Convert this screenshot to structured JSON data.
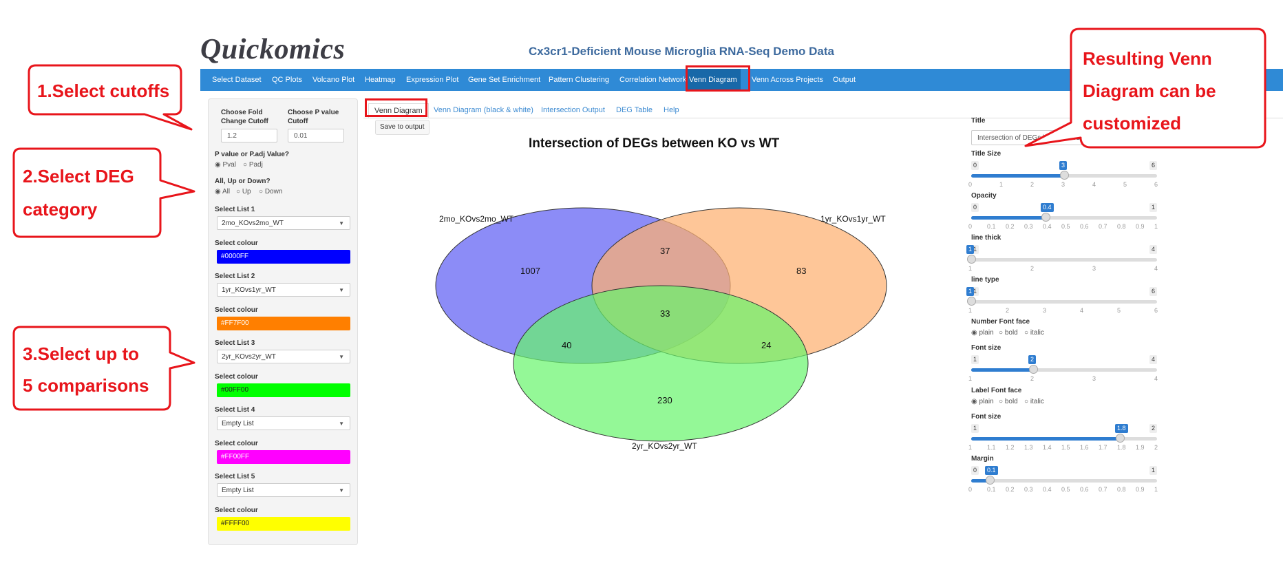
{
  "app": {
    "logo": "Quickomics",
    "title": "Cx3cr1-Deficient Mouse Microglia RNA-Seq Demo Data"
  },
  "nav": {
    "items": [
      "Select Dataset",
      "QC Plots",
      "Volcano Plot",
      "Heatmap",
      "Expression Plot",
      "Gene Set Enrichment",
      "Pattern Clustering",
      "Correlation Network",
      "Venn Diagram",
      "Venn Across Projects",
      "Output"
    ],
    "active": "Venn Diagram"
  },
  "sidebar": {
    "fold_change_label": "Choose Fold Change Cutoff",
    "fold_change_value": "1.2",
    "pvalue_label": "Choose P value Cutoff",
    "pvalue_value": "0.01",
    "pval_type_label": "P value or P.adj Value?",
    "pval_type_options": [
      "Pval",
      "Padj"
    ],
    "pval_type_selected": "Pval",
    "direction_label": "All, Up or Down?",
    "direction_options": [
      "All",
      "Up",
      "Down"
    ],
    "direction_selected": "All",
    "lists": [
      {
        "label": "Select List 1",
        "value": "2mo_KOvs2mo_WT",
        "colour_label": "Select colour",
        "colour": "#0000FF"
      },
      {
        "label": "Select List 2",
        "value": "1yr_KOvs1yr_WT",
        "colour_label": "Select colour",
        "colour": "#FF7F00"
      },
      {
        "label": "Select List 3",
        "value": "2yr_KOvs2yr_WT",
        "colour_label": "Select colour",
        "colour": "#00FF00"
      },
      {
        "label": "Select List 4",
        "value": "Empty List",
        "colour_label": "Select colour",
        "colour": "#FF00FF"
      },
      {
        "label": "Select List 5",
        "value": "Empty List",
        "colour_label": "Select colour",
        "colour": "#FFFF00"
      }
    ]
  },
  "tabs": {
    "items": [
      "Venn Diagram",
      "Venn Diagram (black & white)",
      "Intersection Output",
      "DEG Table",
      "Help"
    ],
    "active": "Venn Diagram",
    "save_button": "Save to output"
  },
  "venn": {
    "title": "Intersection of DEGs between KO vs WT",
    "sets": [
      {
        "name": "2mo_KOvs2mo_WT",
        "fill": "#6b6bf5"
      },
      {
        "name": "1yr_KOvs1yr_WT",
        "fill": "#fdb070"
      },
      {
        "name": "2yr_KOvs2yr_WT",
        "fill": "#66f56b"
      }
    ],
    "regions": {
      "only_2mo": "1007",
      "only_1yr": "83",
      "only_2yr": "230",
      "2mo_1yr": "37",
      "2mo_2yr": "40",
      "1yr_2yr": "24",
      "all": "33"
    }
  },
  "settings": {
    "title_label": "Title",
    "title_value": "Intersection of DEGs between KO vs WT",
    "sliders": [
      {
        "label": "Title Size",
        "min": 0,
        "max": 6,
        "value": 3,
        "ticks": [
          "0",
          "1",
          "2",
          "3",
          "4",
          "5",
          "6"
        ]
      },
      {
        "label": "Opacity",
        "min": 0,
        "max": 1,
        "value": 0.4,
        "ticks": [
          "0",
          "0.1",
          "0.2",
          "0.3",
          "0.4",
          "0.5",
          "0.6",
          "0.7",
          "0.8",
          "0.9",
          "1"
        ]
      },
      {
        "label": "line thick",
        "min": 1,
        "max": 4,
        "value": 1,
        "ticks": [
          "1",
          "2",
          "3",
          "4"
        ]
      },
      {
        "label": "line type",
        "min": 1,
        "max": 6,
        "value": 1,
        "ticks": [
          "1",
          "2",
          "3",
          "4",
          "5",
          "6"
        ]
      }
    ],
    "number_face_label": "Number Font face",
    "number_face_options": [
      "plain",
      "bold",
      "italic"
    ],
    "number_face_selected": "plain",
    "number_size": {
      "label": "Font size",
      "min": 1,
      "max": 4,
      "value": 2,
      "ticks": [
        "1",
        "2",
        "3",
        "4"
      ]
    },
    "label_face_label": "Label Font face",
    "label_face_options": [
      "plain",
      "bold",
      "italic"
    ],
    "label_face_selected": "plain",
    "label_size": {
      "label": "Font size",
      "min": 1,
      "max": 2,
      "value": 1.8,
      "ticks": [
        "1",
        "1.1",
        "1.2",
        "1.3",
        "1.4",
        "1.5",
        "1.6",
        "1.7",
        "1.8",
        "1.9",
        "2"
      ]
    },
    "margin": {
      "label": "Margin",
      "min": 0,
      "max": 1,
      "value": 0.1,
      "ticks": [
        "0",
        "0.1",
        "0.2",
        "0.3",
        "0.4",
        "0.5",
        "0.6",
        "0.7",
        "0.8",
        "0.9",
        "1"
      ]
    }
  },
  "callouts": {
    "step1": "1.Select cutoffs",
    "step2_line1": "2.Select DEG",
    "step2_line2": "category",
    "step3_line1": "3.Select up to",
    "step3_line2": "5 comparisons",
    "result_line1": "Resulting Venn",
    "result_line2": "Diagram can be",
    "result_line3": "customized"
  },
  "colors": {
    "navbar": "#2f8ad6",
    "nav_active": "#1868a8",
    "callout_red": "#e8151b",
    "slider_blue": "#2f7dd0"
  }
}
